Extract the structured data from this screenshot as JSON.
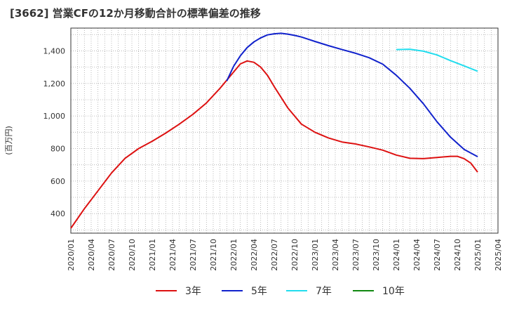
{
  "chart_data": {
    "type": "line",
    "title": "[3662]  営業CFの12か月移動合計の標準偏差の推移",
    "ylabel": "(百万円)",
    "xlabel": "",
    "ylim": [
      280,
      1540
    ],
    "yticks": [
      400,
      600,
      800,
      1000,
      1200,
      1400
    ],
    "ytick_labels": [
      "400",
      "600",
      "800",
      "1,000",
      "1,200",
      "1,400"
    ],
    "xticks": [
      "2020/01",
      "2020/04",
      "2020/07",
      "2020/10",
      "2021/01",
      "2021/04",
      "2021/07",
      "2021/10",
      "2022/01",
      "2022/04",
      "2022/07",
      "2022/10",
      "2023/01",
      "2023/04",
      "2023/07",
      "2023/10",
      "2024/01",
      "2024/04",
      "2024/07",
      "2024/10",
      "2025/01",
      "2025/04"
    ],
    "grid": true,
    "legend_position": "bottom",
    "series": [
      {
        "name": "3年",
        "color": "#dd1111",
        "x": [
          "2020/01",
          "2020/03",
          "2020/05",
          "2020/07",
          "2020/09",
          "2020/11",
          "2021/01",
          "2021/03",
          "2021/05",
          "2021/07",
          "2021/09",
          "2021/11",
          "2022/01",
          "2022/02",
          "2022/03",
          "2022/04",
          "2022/05",
          "2022/06",
          "2022/07",
          "2022/09",
          "2022/11",
          "2023/01",
          "2023/03",
          "2023/05",
          "2023/07",
          "2023/09",
          "2023/11",
          "2024/01",
          "2024/03",
          "2024/05",
          "2024/07",
          "2024/09",
          "2024/10",
          "2024/11",
          "2024/12",
          "2025/01"
        ],
        "values": [
          310,
          430,
          540,
          650,
          740,
          800,
          845,
          895,
          950,
          1010,
          1080,
          1170,
          1270,
          1320,
          1338,
          1330,
          1300,
          1250,
          1180,
          1050,
          950,
          900,
          865,
          840,
          828,
          810,
          790,
          760,
          740,
          738,
          745,
          752,
          752,
          738,
          710,
          655
        ]
      },
      {
        "name": "5年",
        "color": "#1122cc",
        "x": [
          "2021/12",
          "2022/01",
          "2022/02",
          "2022/03",
          "2022/04",
          "2022/05",
          "2022/06",
          "2022/07",
          "2022/08",
          "2022/09",
          "2022/10",
          "2022/11",
          "2022/12",
          "2023/01",
          "2023/03",
          "2023/05",
          "2023/07",
          "2023/09",
          "2023/11",
          "2024/01",
          "2024/03",
          "2024/05",
          "2024/07",
          "2024/09",
          "2024/11",
          "2025/01"
        ],
        "values": [
          1215,
          1305,
          1370,
          1420,
          1455,
          1480,
          1498,
          1505,
          1508,
          1503,
          1495,
          1485,
          1472,
          1458,
          1432,
          1408,
          1385,
          1358,
          1318,
          1250,
          1170,
          1075,
          965,
          870,
          795,
          750
        ]
      },
      {
        "name": "7年",
        "color": "#22ddee",
        "x": [
          "2024/01",
          "2024/03",
          "2024/05",
          "2024/07",
          "2024/09",
          "2024/11",
          "2025/01"
        ],
        "values": [
          1408,
          1410,
          1398,
          1375,
          1340,
          1308,
          1275
        ]
      },
      {
        "name": "10年",
        "color": "#118811",
        "x": [],
        "values": []
      }
    ]
  }
}
